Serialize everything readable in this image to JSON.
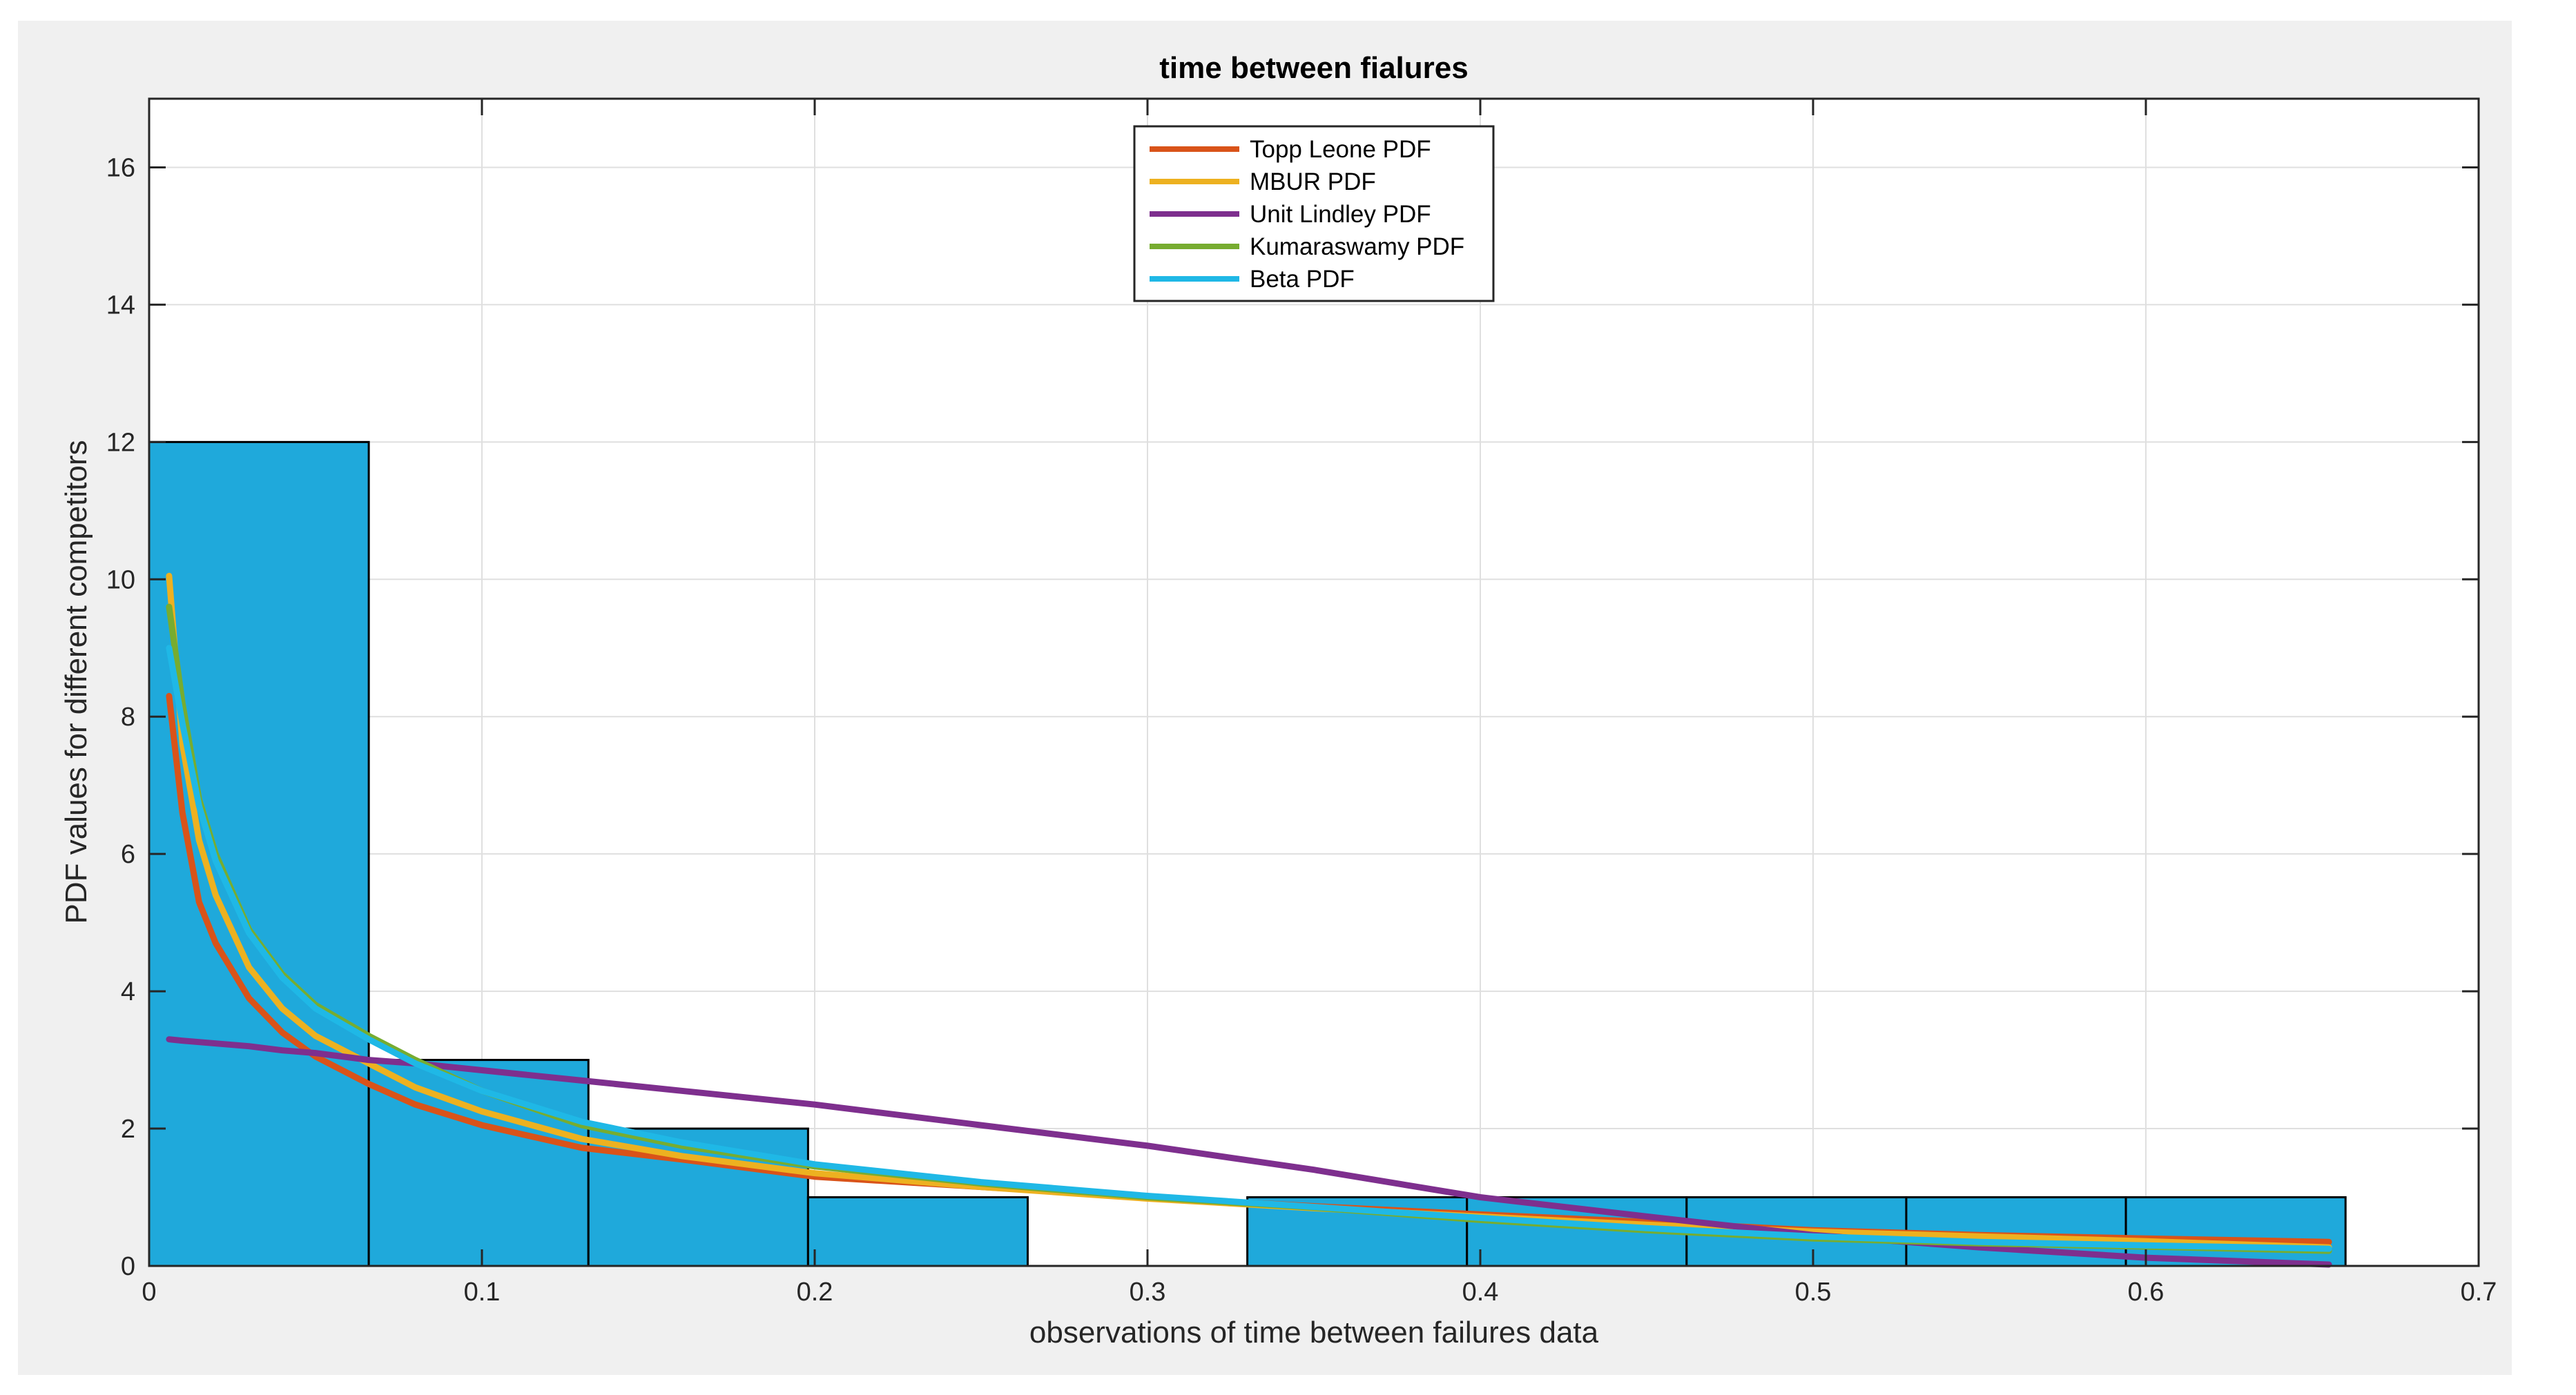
{
  "chart_data": {
    "type": "bar",
    "title": "time between fialures",
    "xlabel": "observations of time between failures data",
    "ylabel": "PDF values for different competitors",
    "xlim": [
      0,
      0.7
    ],
    "ylim": [
      0,
      17
    ],
    "xticks": [
      "0",
      "0.1",
      "0.2",
      "0.3",
      "0.4",
      "0.5",
      "0.6",
      "0.7"
    ],
    "yticks": [
      "0",
      "2",
      "4",
      "6",
      "8",
      "10",
      "12",
      "14",
      "16"
    ],
    "grid": true,
    "legend_position": "top-center",
    "histogram": {
      "bin_width": 0.066,
      "bins": [
        {
          "x0": 0.0,
          "x1": 0.066,
          "value": 12
        },
        {
          "x0": 0.066,
          "x1": 0.132,
          "value": 3
        },
        {
          "x0": 0.132,
          "x1": 0.198,
          "value": 2
        },
        {
          "x0": 0.198,
          "x1": 0.264,
          "value": 1
        },
        {
          "x0": 0.264,
          "x1": 0.33,
          "value": 0
        },
        {
          "x0": 0.33,
          "x1": 0.396,
          "value": 1
        },
        {
          "x0": 0.396,
          "x1": 0.462,
          "value": 1
        },
        {
          "x0": 0.462,
          "x1": 0.528,
          "value": 1
        },
        {
          "x0": 0.528,
          "x1": 0.594,
          "value": 1
        },
        {
          "x0": 0.594,
          "x1": 0.66,
          "value": 1
        }
      ],
      "color": "#1FA9DB",
      "edge_color": "#000000"
    },
    "x": [
      0.006,
      0.01,
      0.015,
      0.02,
      0.03,
      0.04,
      0.05,
      0.066,
      0.08,
      0.1,
      0.13,
      0.16,
      0.2,
      0.25,
      0.3,
      0.35,
      0.4,
      0.45,
      0.5,
      0.55,
      0.6,
      0.655
    ],
    "series": [
      {
        "name": "Topp Leone PDF",
        "color": "#D95319",
        "values": [
          8.3,
          6.6,
          5.3,
          4.7,
          3.9,
          3.4,
          3.05,
          2.65,
          2.35,
          2.05,
          1.72,
          1.55,
          1.3,
          1.15,
          1.0,
          0.87,
          0.75,
          0.64,
          0.52,
          0.45,
          0.4,
          0.35
        ]
      },
      {
        "name": "MBUR PDF",
        "color": "#EDB120",
        "values": [
          10.05,
          7.6,
          6.2,
          5.4,
          4.35,
          3.75,
          3.35,
          2.95,
          2.6,
          2.25,
          1.85,
          1.6,
          1.35,
          1.15,
          0.98,
          0.84,
          0.72,
          0.6,
          0.5,
          0.43,
          0.36,
          0.27
        ]
      },
      {
        "name": "Unit Lindley PDF",
        "color": "#7E2F8E",
        "values": [
          3.3,
          3.28,
          3.26,
          3.24,
          3.2,
          3.14,
          3.1,
          3.0,
          2.95,
          2.85,
          2.7,
          2.55,
          2.35,
          2.05,
          1.75,
          1.4,
          1.0,
          0.72,
          0.45,
          0.27,
          0.12,
          0.02
        ]
      },
      {
        "name": "Kumaraswamy PDF",
        "color": "#77AC30",
        "values": [
          9.6,
          8.2,
          6.8,
          6.0,
          4.9,
          4.25,
          3.8,
          3.35,
          3.0,
          2.55,
          2.05,
          1.75,
          1.45,
          1.2,
          1.0,
          0.85,
          0.67,
          0.52,
          0.4,
          0.33,
          0.28,
          0.22
        ]
      },
      {
        "name": "Beta PDF",
        "color": "#1FB8E6",
        "values": [
          9.0,
          7.9,
          6.7,
          5.9,
          4.85,
          4.2,
          3.75,
          3.3,
          2.95,
          2.55,
          2.1,
          1.8,
          1.48,
          1.22,
          1.02,
          0.86,
          0.7,
          0.55,
          0.43,
          0.35,
          0.3,
          0.25
        ]
      }
    ]
  }
}
